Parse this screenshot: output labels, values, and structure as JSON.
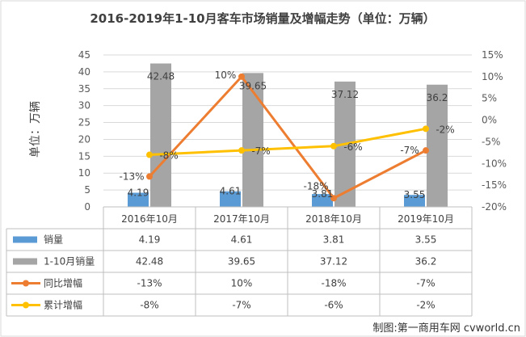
{
  "chart_data": {
    "type": "bar",
    "title": "2016-2019年1-10月客车市场销量及增幅走势（单位：万辆）",
    "ylabel": "单位：万辆",
    "categories": [
      "2016年10月",
      "2017年10月",
      "2018年10月",
      "2019年10月"
    ],
    "ylim": [
      0,
      45
    ],
    "y_ticks": [
      "45",
      "40",
      "35",
      "30",
      "25",
      "20",
      "15",
      "10",
      "5",
      "0"
    ],
    "y2lim": [
      -20,
      15
    ],
    "y2_ticks": [
      "15%",
      "10%",
      "5%",
      "0%",
      "-5%",
      "-10%",
      "-15%",
      "-20%"
    ],
    "legend": "data-table",
    "series": [
      {
        "name": "销量",
        "type": "bar",
        "axis": "left",
        "color": "#5B9BD5",
        "values": [
          4.19,
          4.61,
          3.81,
          3.55
        ],
        "labels": [
          "4.19",
          "4.61",
          "3.81",
          "3.55"
        ]
      },
      {
        "name": "1-10月销量",
        "type": "bar",
        "axis": "left",
        "color": "#A5A5A5",
        "values": [
          42.48,
          39.65,
          37.12,
          36.2
        ],
        "labels": [
          "42.48",
          "39.65",
          "37.12",
          "36.2"
        ]
      },
      {
        "name": "同比增幅",
        "type": "line",
        "axis": "right",
        "color": "#ED7D31",
        "values": [
          -13,
          10,
          -18,
          -7
        ],
        "labels": [
          "-13%",
          "10%",
          "-18%",
          "-7%"
        ]
      },
      {
        "name": "累计增幅",
        "type": "line",
        "axis": "right",
        "color": "#FFC000",
        "values": [
          -8,
          -7,
          -6,
          -2
        ],
        "labels": [
          "-8%",
          "-7%",
          "-6%",
          "-2%"
        ]
      }
    ]
  },
  "credit": "制图:第一商用车网 cvworld.cn"
}
